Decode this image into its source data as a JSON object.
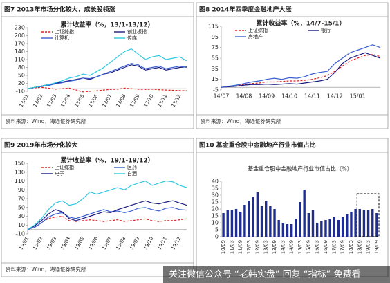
{
  "chart_data": [
    {
      "type": "line",
      "title": "图7  2013年市场分化较大，成长股领涨",
      "legend_title": "累计收益率（%，13/1-13/12）",
      "source": "资料来源：Wind，海通证券研究所",
      "categories": [
        "13/01",
        null,
        "13/02",
        null,
        "13/03",
        null,
        "13/04",
        null,
        "13/05",
        null,
        "13/06",
        null,
        "13/07",
        null,
        "13/08",
        null,
        "13/09",
        null,
        "13/10",
        null,
        "13/11",
        null,
        "13/12",
        null
      ],
      "ylim": [
        -10,
        230
      ],
      "yticks": [
        -10,
        20,
        50,
        80,
        110,
        140,
        170,
        200,
        230
      ],
      "series": [
        {
          "name": "上证综指",
          "color": "#e02020",
          "dash": true,
          "values": [
            0,
            3,
            5,
            2,
            -2,
            0,
            2,
            -5,
            -12,
            -10,
            -8,
            -5,
            -3,
            -2,
            2,
            0,
            -2,
            -3,
            -2,
            -4,
            -5,
            -6,
            -7,
            -8
          ]
        },
        {
          "name": "创业板指",
          "color": "#1a1a80",
          "values": [
            0,
            5,
            10,
            15,
            20,
            25,
            30,
            35,
            40,
            35,
            45,
            55,
            60,
            70,
            80,
            90,
            85,
            70,
            75,
            80,
            70,
            75,
            80,
            82
          ]
        },
        {
          "name": "计算机",
          "color": "#3a5fd0",
          "values": [
            0,
            5,
            8,
            12,
            18,
            22,
            28,
            32,
            40,
            38,
            45,
            55,
            65,
            75,
            85,
            95,
            90,
            75,
            80,
            85,
            75,
            80,
            85,
            80
          ]
        },
        {
          "name": "传媒",
          "color": "#30c8e0",
          "values": [
            0,
            5,
            10,
            15,
            22,
            30,
            40,
            45,
            55,
            50,
            65,
            80,
            100,
            120,
            140,
            150,
            130,
            110,
            120,
            125,
            110,
            115,
            120,
            105
          ]
        }
      ]
    },
    {
      "type": "line",
      "title": "图8  2014年四季度金融地产大涨",
      "legend_title": "累计收益率（%，14/7-15/1）",
      "source": "资料来源：Wind，海通证券研究所",
      "categories": [
        "14/07",
        null,
        null,
        "14/08",
        null,
        null,
        "14/09",
        null,
        null,
        "14/10",
        null,
        null,
        "14/11",
        null,
        null,
        "14/12",
        null,
        null,
        "15/01",
        null,
        null,
        null
      ],
      "ylim": [
        -5,
        115
      ],
      "yticks": [
        -5,
        15,
        35,
        55,
        75,
        95,
        115
      ],
      "series": [
        {
          "name": "上证综指",
          "color": "#e02020",
          "dash": true,
          "values": [
            0,
            1,
            3,
            5,
            7,
            8,
            10,
            10,
            11,
            12,
            12,
            13,
            15,
            18,
            22,
            30,
            40,
            50,
            55,
            60,
            62,
            58
          ]
        },
        {
          "name": "银行",
          "color": "#1a1a80",
          "values": [
            0,
            1,
            2,
            4,
            5,
            5,
            6,
            5,
            6,
            7,
            6,
            8,
            10,
            12,
            15,
            28,
            45,
            55,
            60,
            65,
            60,
            55
          ]
        },
        {
          "name": "房地产",
          "color": "#3a5fd0",
          "values": [
            0,
            2,
            4,
            7,
            10,
            12,
            15,
            17,
            15,
            18,
            17,
            20,
            25,
            28,
            30,
            45,
            55,
            65,
            70,
            75,
            80,
            75
          ]
        }
      ]
    },
    {
      "type": "line",
      "title": "图9  2019年市场分化较大",
      "legend_title": "累计收益率（%，19/1-19/12）",
      "source": "资料来源：Wind，海通证券研究所",
      "categories": [
        "19/01",
        null,
        "19/02",
        null,
        "19/03",
        null,
        "19/04",
        null,
        "19/05",
        null,
        "19/06",
        null,
        "19/07",
        null,
        "19/08",
        null,
        "19/09",
        null,
        "19/10",
        null,
        "19/11",
        null,
        "19/12",
        null
      ],
      "ylim": [
        -10,
        150
      ],
      "yticks": [
        -10,
        10,
        30,
        50,
        70,
        90,
        110,
        130,
        150
      ],
      "series": [
        {
          "name": "上证综指",
          "color": "#e02020",
          "dash": true,
          "values": [
            0,
            5,
            15,
            25,
            28,
            30,
            20,
            18,
            20,
            22,
            20,
            18,
            20,
            22,
            18,
            20,
            22,
            24,
            20,
            18,
            20,
            20,
            22,
            24
          ]
        },
        {
          "name": "医药",
          "color": "#3a5fd0",
          "values": [
            0,
            5,
            15,
            28,
            35,
            38,
            28,
            25,
            30,
            35,
            40,
            45,
            40,
            42,
            38,
            42,
            48,
            50,
            45,
            42,
            48,
            50,
            45,
            44
          ]
        },
        {
          "name": "电子",
          "color": "#1a1a80",
          "values": [
            0,
            8,
            20,
            35,
            45,
            40,
            25,
            20,
            25,
            30,
            35,
            40,
            38,
            45,
            50,
            55,
            60,
            65,
            60,
            58,
            62,
            65,
            60,
            55
          ]
        },
        {
          "name": "白酒",
          "color": "#30c8e0",
          "values": [
            0,
            10,
            25,
            45,
            60,
            65,
            55,
            58,
            70,
            85,
            80,
            85,
            90,
            95,
            90,
            100,
            105,
            110,
            100,
            105,
            110,
            108,
            100,
            95
          ]
        }
      ]
    },
    {
      "type": "bar",
      "title": "图10 基金重仓股中金融地产行业市值占比",
      "subtitle": "基金重仓股中金融地产行业市值占比（%）",
      "color": "#1f2e8c",
      "categories": [
        "10/09",
        null,
        "11/03",
        null,
        "11/09",
        null,
        "12/03",
        null,
        "12/09",
        null,
        "13/03",
        null,
        "13/09",
        null,
        "14/03",
        null,
        "14/09",
        null,
        "15/03",
        null,
        "15/09",
        null,
        "16/03",
        null,
        "16/09",
        null,
        "17/03",
        null,
        "17/09",
        null,
        "18/03",
        null,
        "18/09",
        null,
        "19/03",
        null,
        "19/09"
      ],
      "values": [
        17,
        19,
        19,
        20,
        18,
        23,
        26,
        29,
        32,
        22,
        26,
        22,
        20,
        12,
        10,
        9,
        9,
        13,
        25,
        34,
        17,
        19,
        10,
        11,
        12,
        13,
        14,
        12,
        14,
        16,
        18,
        20,
        20,
        19,
        19,
        20,
        17
      ],
      "ylim": [
        0,
        40
      ],
      "yticks": [
        0,
        5,
        10,
        15,
        20,
        25,
        30,
        35,
        40
      ]
    }
  ],
  "watermark": "关注微信公众号 “老韩实盘” 回复 “指标” 免费看"
}
